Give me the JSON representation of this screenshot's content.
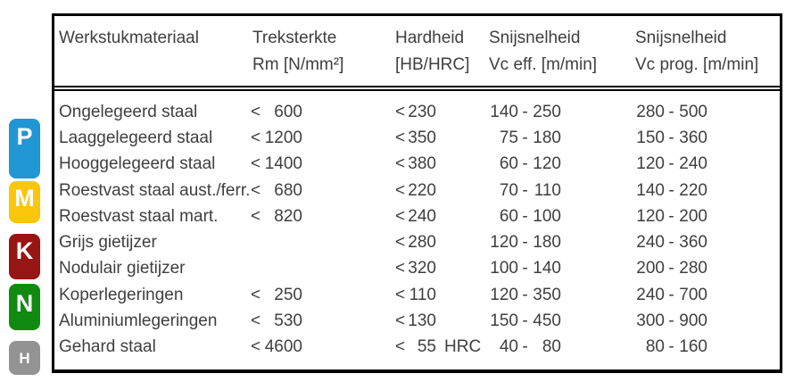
{
  "badges": [
    {
      "letter": "P",
      "color": "#2196d5"
    },
    {
      "letter": "M",
      "color": "#fcc60d"
    },
    {
      "letter": "K",
      "color": "#971512"
    },
    {
      "letter": "N",
      "color": "#108a10"
    },
    {
      "letter": "H",
      "color": "#939393"
    }
  ],
  "table": {
    "range_separator": "-",
    "columns": [
      {
        "line1": "Werkstukmateriaal",
        "line2": ""
      },
      {
        "line1": "Treksterkte",
        "line2": "Rm [N/mm²]"
      },
      {
        "line1": "Hardheid",
        "line2": "[HB/HRC]"
      },
      {
        "line1": "Snijsnelheid",
        "line2": "Vc eff. [m/min]"
      },
      {
        "line1": "Snijsnelheid",
        "line2": "Vc prog. [m/min]"
      }
    ],
    "rows": [
      {
        "material": "Ongelegeerd staal",
        "rm_lt": "<",
        "rm": "600",
        "hb_lt": "<",
        "hb": "230",
        "hb_suffix": "",
        "eff_lo": "140",
        "eff_hi": "250",
        "prog_lo": "280",
        "prog_hi": "500"
      },
      {
        "material": "Laaggelegeerd staal",
        "rm_lt": "<",
        "rm": "1200",
        "hb_lt": "<",
        "hb": "350",
        "hb_suffix": "",
        "eff_lo": "75",
        "eff_hi": "180",
        "prog_lo": "150",
        "prog_hi": "360"
      },
      {
        "material": "Hooggelegeerd staal",
        "rm_lt": "<",
        "rm": "1400",
        "hb_lt": "<",
        "hb": "380",
        "hb_suffix": "",
        "eff_lo": "60",
        "eff_hi": "120",
        "prog_lo": "120",
        "prog_hi": "240"
      },
      {
        "material": "Roestvast staal aust./ferr.",
        "rm_lt": "<",
        "rm": "680",
        "hb_lt": "<",
        "hb": "220",
        "hb_suffix": "",
        "eff_lo": "70",
        "eff_hi": "110",
        "prog_lo": "140",
        "prog_hi": "220"
      },
      {
        "material": "Roestvast staal mart.",
        "rm_lt": "<",
        "rm": "820",
        "hb_lt": "<",
        "hb": "240",
        "hb_suffix": "",
        "eff_lo": "60",
        "eff_hi": "100",
        "prog_lo": "120",
        "prog_hi": "200"
      },
      {
        "material": "Grijs gietijzer",
        "rm_lt": "",
        "rm": "",
        "hb_lt": "<",
        "hb": "280",
        "hb_suffix": "",
        "eff_lo": "120",
        "eff_hi": "180",
        "prog_lo": "240",
        "prog_hi": "360"
      },
      {
        "material": "Nodulair gietijzer",
        "rm_lt": "",
        "rm": "",
        "hb_lt": "<",
        "hb": "320",
        "hb_suffix": "",
        "eff_lo": "100",
        "eff_hi": "140",
        "prog_lo": "200",
        "prog_hi": "280"
      },
      {
        "material": "Koperlegeringen",
        "rm_lt": "<",
        "rm": "250",
        "hb_lt": "<",
        "hb": "110",
        "hb_suffix": "",
        "eff_lo": "120",
        "eff_hi": "350",
        "prog_lo": "240",
        "prog_hi": "700"
      },
      {
        "material": "Aluminiumlegeringen",
        "rm_lt": "<",
        "rm": "530",
        "hb_lt": "<",
        "hb": "130",
        "hb_suffix": "",
        "eff_lo": "150",
        "eff_hi": "450",
        "prog_lo": "300",
        "prog_hi": "900"
      },
      {
        "material": "Gehard staal",
        "rm_lt": "<",
        "rm": "4600",
        "hb_lt": "<",
        "hb": "55",
        "hb_suffix": "HRC",
        "eff_lo": "40",
        "eff_hi": "80",
        "prog_lo": "80",
        "prog_hi": "160"
      }
    ]
  }
}
